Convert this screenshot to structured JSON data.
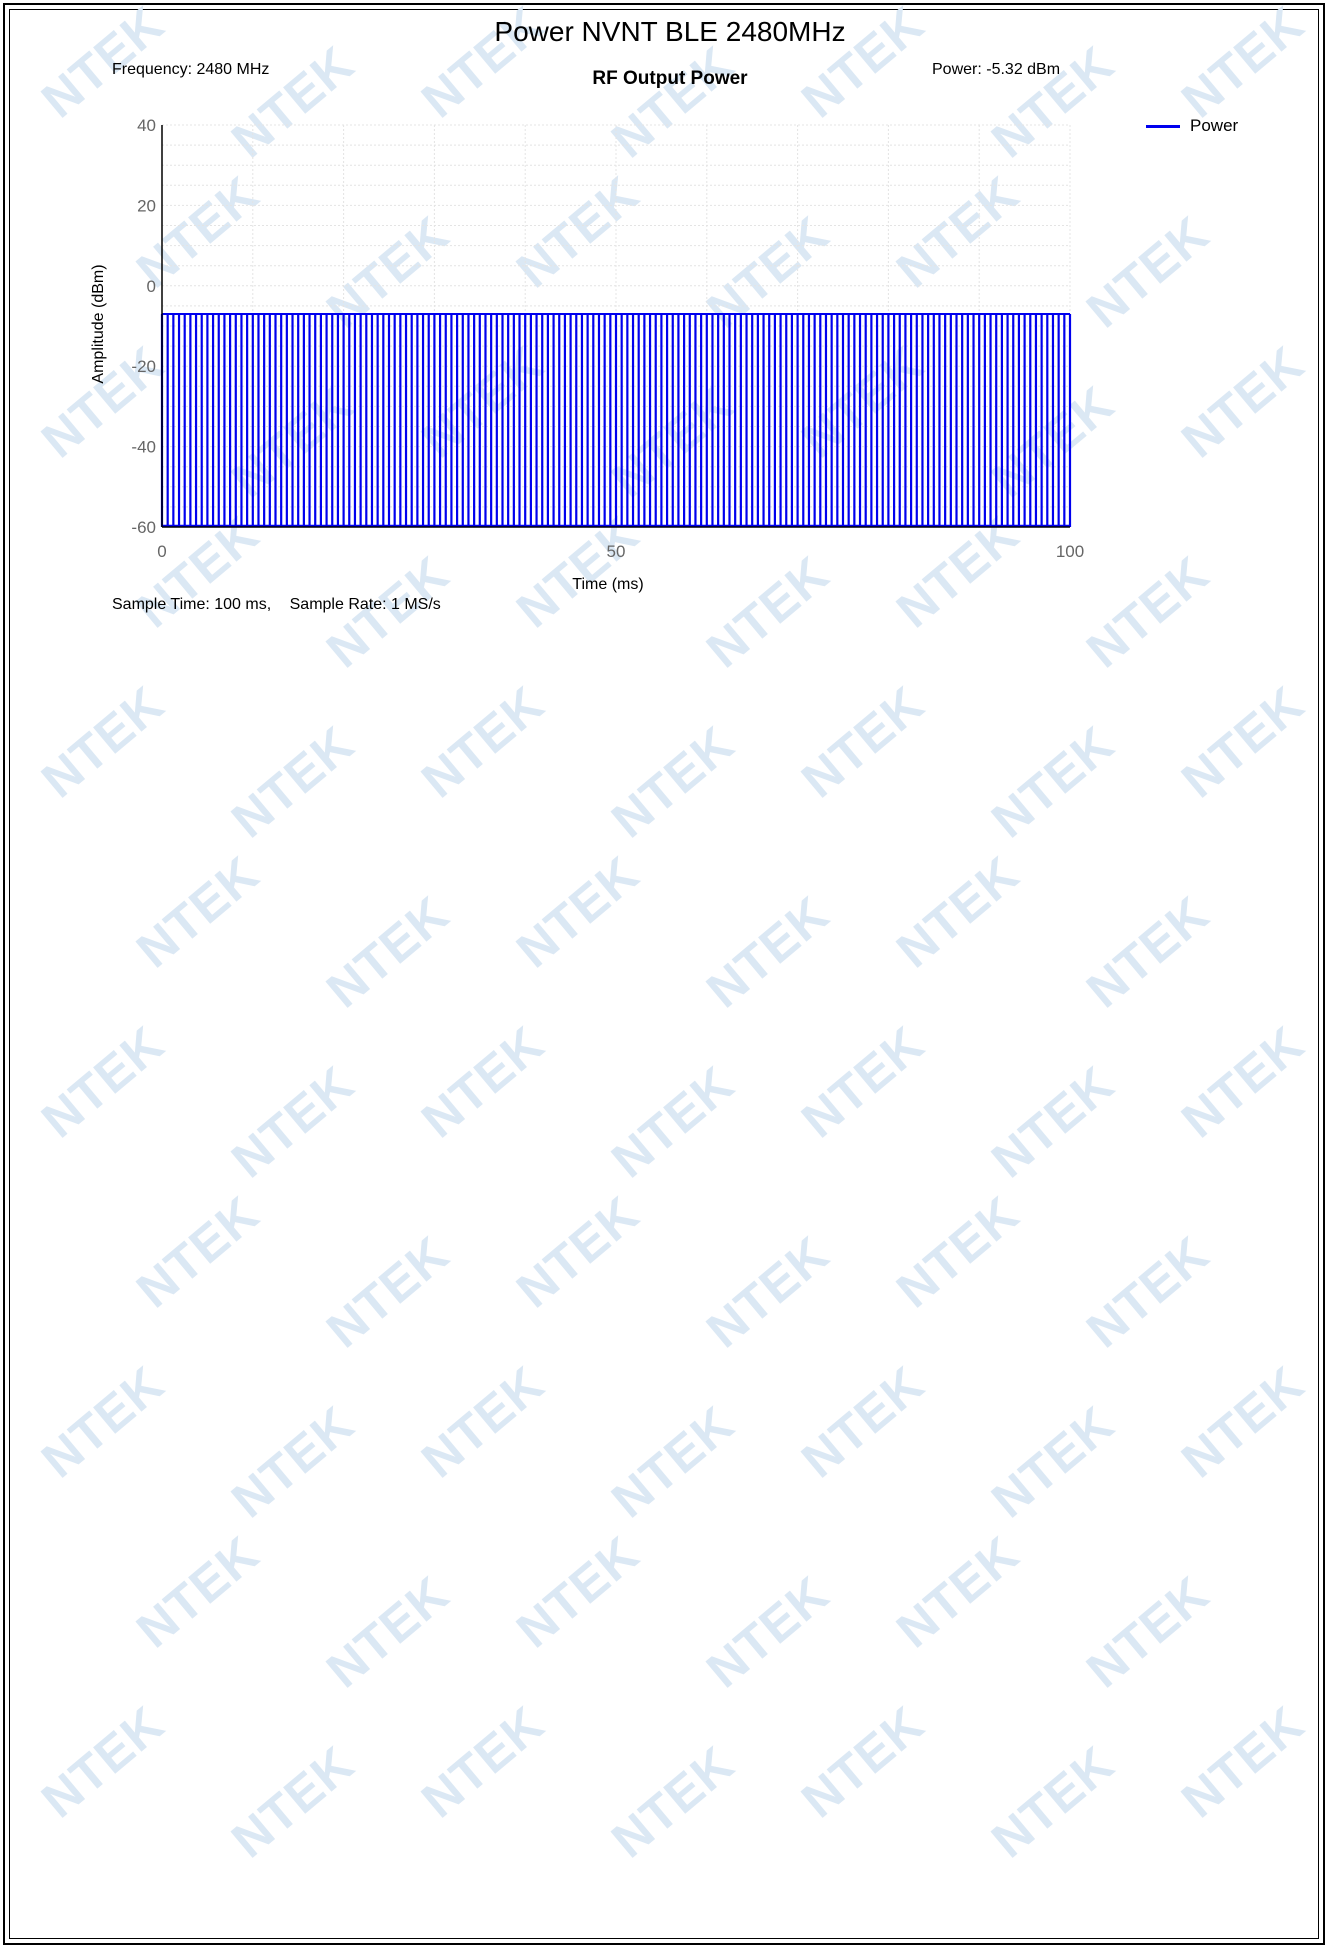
{
  "page_title": "Power NVNT BLE 2480MHz",
  "header": {
    "frequency_label": "Frequency: 2480 MHz",
    "power_label": "Power: -5.32 dBm"
  },
  "footer": {
    "sample_time": "Sample Time: 100 ms,",
    "sample_rate": "Sample Rate: 1 MS/s"
  },
  "watermark_text": "NTEK",
  "colors": {
    "series": "#0000ee",
    "grid": "#e4e4e4",
    "watermark": "#dbe8f4"
  },
  "chart_data": {
    "type": "line",
    "title": "RF Output Power",
    "xlabel": "Time (ms)",
    "ylabel": "Amplitude (dBm)",
    "xlim": [
      0,
      100
    ],
    "ylim": [
      -60,
      40
    ],
    "x_ticks": [
      0,
      50,
      100
    ],
    "y_ticks": [
      40,
      20,
      0,
      -20,
      -40,
      -60
    ],
    "grid": true,
    "legend": "top-right",
    "series": [
      {
        "name": "Power",
        "pattern": "periodic_bursts",
        "period_ms": 0.625,
        "burst_high_dbm": -7,
        "floor_dbm": -60
      }
    ]
  }
}
